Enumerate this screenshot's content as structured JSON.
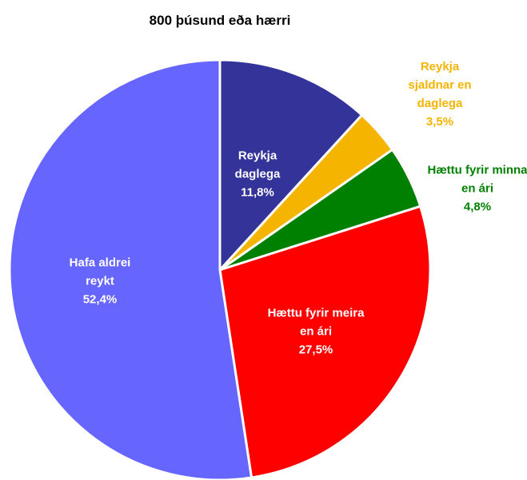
{
  "chart_data": {
    "type": "pie",
    "title": "800 þúsund eða hærri",
    "categories": [
      "Reykja daglega",
      "Reykja sjaldnar en daglega",
      "Hættu fyrir minna en ári",
      "Hættu fyrir meira en ári",
      "Hafa aldrei reykt"
    ],
    "values": [
      11.8,
      3.5,
      4.8,
      27.5,
      52.4
    ],
    "value_labels": [
      "11,8%",
      "3,5%",
      "4,8%",
      "27,5%",
      "52,4%"
    ],
    "colors": [
      "#333399",
      "#f5b400",
      "#008000",
      "#ff0000",
      "#6666ff"
    ]
  }
}
